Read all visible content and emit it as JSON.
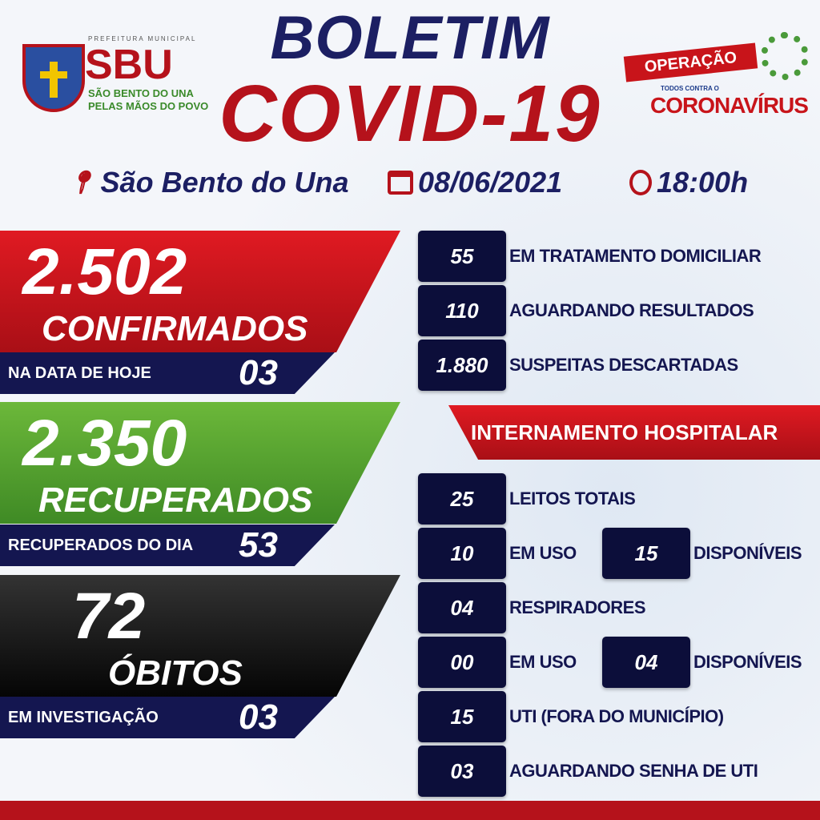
{
  "header": {
    "title_line1": "BOLETIM",
    "title_line2": "COVID-19",
    "location": "São Bento do Una",
    "date": "08/06/2021",
    "time": "18:00h"
  },
  "logo_left": {
    "line1": "PREFEITURA MUNICIPAL",
    "line2": "SBU",
    "line3": "SÃO BENTO DO UNA",
    "line4": "PELAS MÃOS DO POVO"
  },
  "logo_right": {
    "line1": "OPERAÇÃO",
    "line2": "TODOS CONTRA O",
    "line3": "CORONAVÍRUS"
  },
  "colors": {
    "navy": "#1c1f63",
    "red": "#b5121b",
    "green": "#5aa02c",
    "black": "#111111",
    "box": "#0c0e3a"
  },
  "confirmados": {
    "value": "2.502",
    "label": "CONFIRMADOS",
    "sub_label": "NA DATA DE HOJE",
    "sub_value": "03"
  },
  "recuperados": {
    "value": "2.350",
    "label": "RECUPERADOS",
    "sub_label": "RECUPERADOS DO DIA",
    "sub_value": "53"
  },
  "obitos": {
    "value": "72",
    "label": "ÓBITOS",
    "sub_label": "EM INVESTIGAÇÃO",
    "sub_value": "03"
  },
  "stats": [
    {
      "value": "55",
      "label": "EM TRATAMENTO DOMICILIAR"
    },
    {
      "value": "110",
      "label": "AGUARDANDO RESULTADOS"
    },
    {
      "value": "1.880",
      "label": "SUSPEITAS DESCARTADAS"
    }
  ],
  "hospital": {
    "title": "INTERNAMENTO HOSPITALAR",
    "leitos_totais": {
      "value": "25",
      "label": "LEITOS TOTAIS"
    },
    "leitos_uso": {
      "value": "10",
      "label": "EM USO"
    },
    "leitos_disp": {
      "value": "15",
      "label": "DISPONÍVEIS"
    },
    "respiradores": {
      "value": "04",
      "label": "RESPIRADORES"
    },
    "resp_uso": {
      "value": "00",
      "label": "EM USO"
    },
    "resp_disp": {
      "value": "04",
      "label": "DISPONÍVEIS"
    },
    "uti": {
      "value": "15",
      "label": "UTI (FORA DO MUNICÍPIO)"
    },
    "senha": {
      "value": "03",
      "label": "AGUARDANDO SENHA DE UTI"
    }
  }
}
